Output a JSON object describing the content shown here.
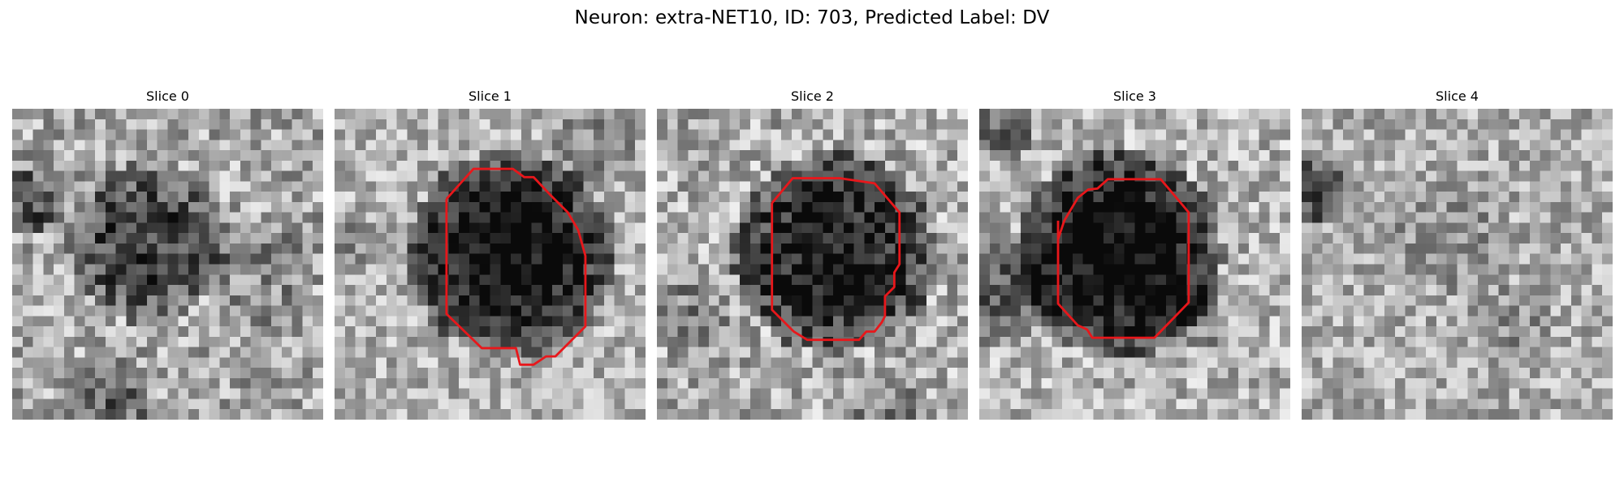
{
  "figure": {
    "title": "Neuron: extra-NET10, ID: 703, Predicted Label: DV"
  },
  "colormap": "gray",
  "contour_color": "#e8171b",
  "slices": [
    {
      "title": "Slice 0",
      "has_contour": false
    },
    {
      "title": "Slice 1",
      "has_contour": true
    },
    {
      "title": "Slice 2",
      "has_contour": true
    },
    {
      "title": "Slice 3",
      "has_contour": true
    },
    {
      "title": "Slice 4",
      "has_contour": false
    }
  ]
}
